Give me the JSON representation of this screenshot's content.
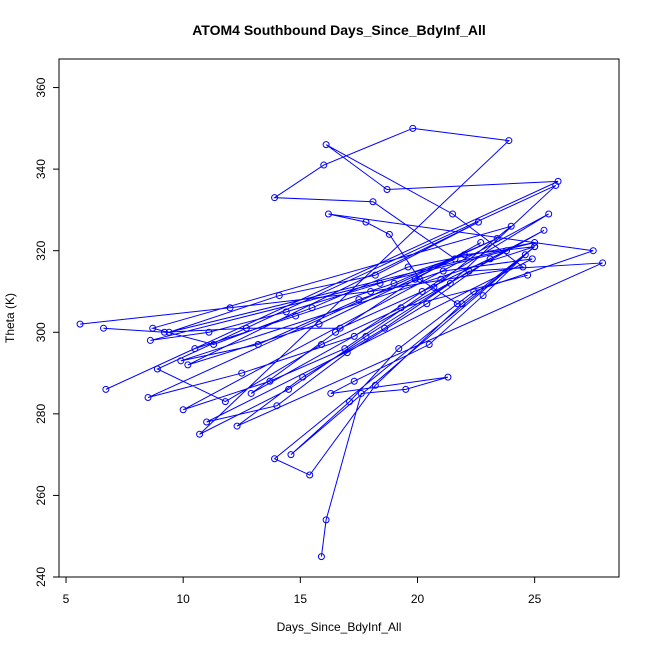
{
  "chart_data": {
    "type": "line",
    "title": "ATOM4 Southbound Days_Since_BdyInf_All",
    "xlabel": "Days_Since_BdyInf_All",
    "ylabel": "Theta (K)",
    "xlim": [
      4.7,
      28.6
    ],
    "ylim": [
      240,
      367
    ],
    "xticks": [
      5,
      10,
      15,
      20,
      25
    ],
    "yticks": [
      240,
      260,
      280,
      300,
      320,
      340,
      360
    ],
    "grid": false,
    "legend": "none",
    "marker": "open-circle",
    "color": "#0000ff",
    "series": [
      {
        "x": [
          5.6,
          12.0,
          18.0,
          24.5,
          21.5,
          16.1,
          18.7,
          26.0,
          6.7,
          10.5,
          14.8,
          19.0,
          23.4,
          8.5,
          12.5,
          17.3,
          21.0,
          25.6,
          10.0,
          13.7,
          16.9,
          20.7,
          24.0,
          8.7,
          11.3,
          15.5,
          19.6,
          25.0,
          9.4,
          14.1,
          18.2,
          22.6,
          10.2,
          15.8,
          21.6,
          18.1,
          13.9,
          16.0,
          19.8,
          23.9,
          10.7,
          14.5,
          17.8,
          22.2,
          27.9,
          12.3,
          15.1,
          18.6,
          21.4,
          25.9,
          8.9,
          11.8,
          15.9,
          19.3,
          24.7
        ],
        "y": [
          302,
          306,
          310,
          316,
          329,
          346,
          335,
          337,
          286,
          296,
          304,
          312,
          323,
          284,
          290,
          299,
          313,
          329,
          281,
          288,
          296,
          311,
          326,
          301,
          297,
          306,
          316,
          322,
          300,
          309,
          314,
          327,
          292,
          302,
          318,
          332,
          333,
          341,
          350,
          347,
          275,
          286,
          299,
          315,
          317,
          277,
          289,
          301,
          312,
          336,
          291,
          283,
          297,
          306,
          314
        ]
      },
      {
        "x": [
          15.9,
          16.1,
          17.6,
          19.5,
          21.3,
          16.3,
          17.3,
          20.5,
          22.8,
          24.6,
          13.9,
          15.4,
          18.2,
          21.9,
          25.0,
          14.6,
          17.1,
          19.2,
          22.4,
          27.5,
          16.2,
          17.8,
          18.8,
          20.1,
          21.7
        ],
        "y": [
          245,
          254,
          285,
          286,
          289,
          285,
          288,
          297,
          309,
          319,
          269,
          265,
          287,
          307,
          321,
          270,
          283,
          296,
          310,
          320,
          329,
          327,
          324,
          313,
          307
        ]
      },
      {
        "x": [
          6.6,
          9.2,
          12.7,
          16.7,
          20.2,
          23.8,
          8.6,
          11.1,
          14.4,
          18.4,
          22.0,
          25.0,
          9.9,
          13.2,
          17.5,
          21.1,
          24.9,
          11.0,
          14.0,
          17.0,
          20.4,
          23.1,
          25.4,
          12.9,
          16.5,
          19.9,
          22.7
        ],
        "y": [
          301,
          300,
          301,
          301,
          310,
          320,
          298,
          300,
          305,
          312,
          319,
          321,
          293,
          297,
          308,
          315,
          318,
          278,
          282,
          295,
          307,
          318,
          325,
          285,
          300,
          313,
          322
        ]
      }
    ]
  }
}
